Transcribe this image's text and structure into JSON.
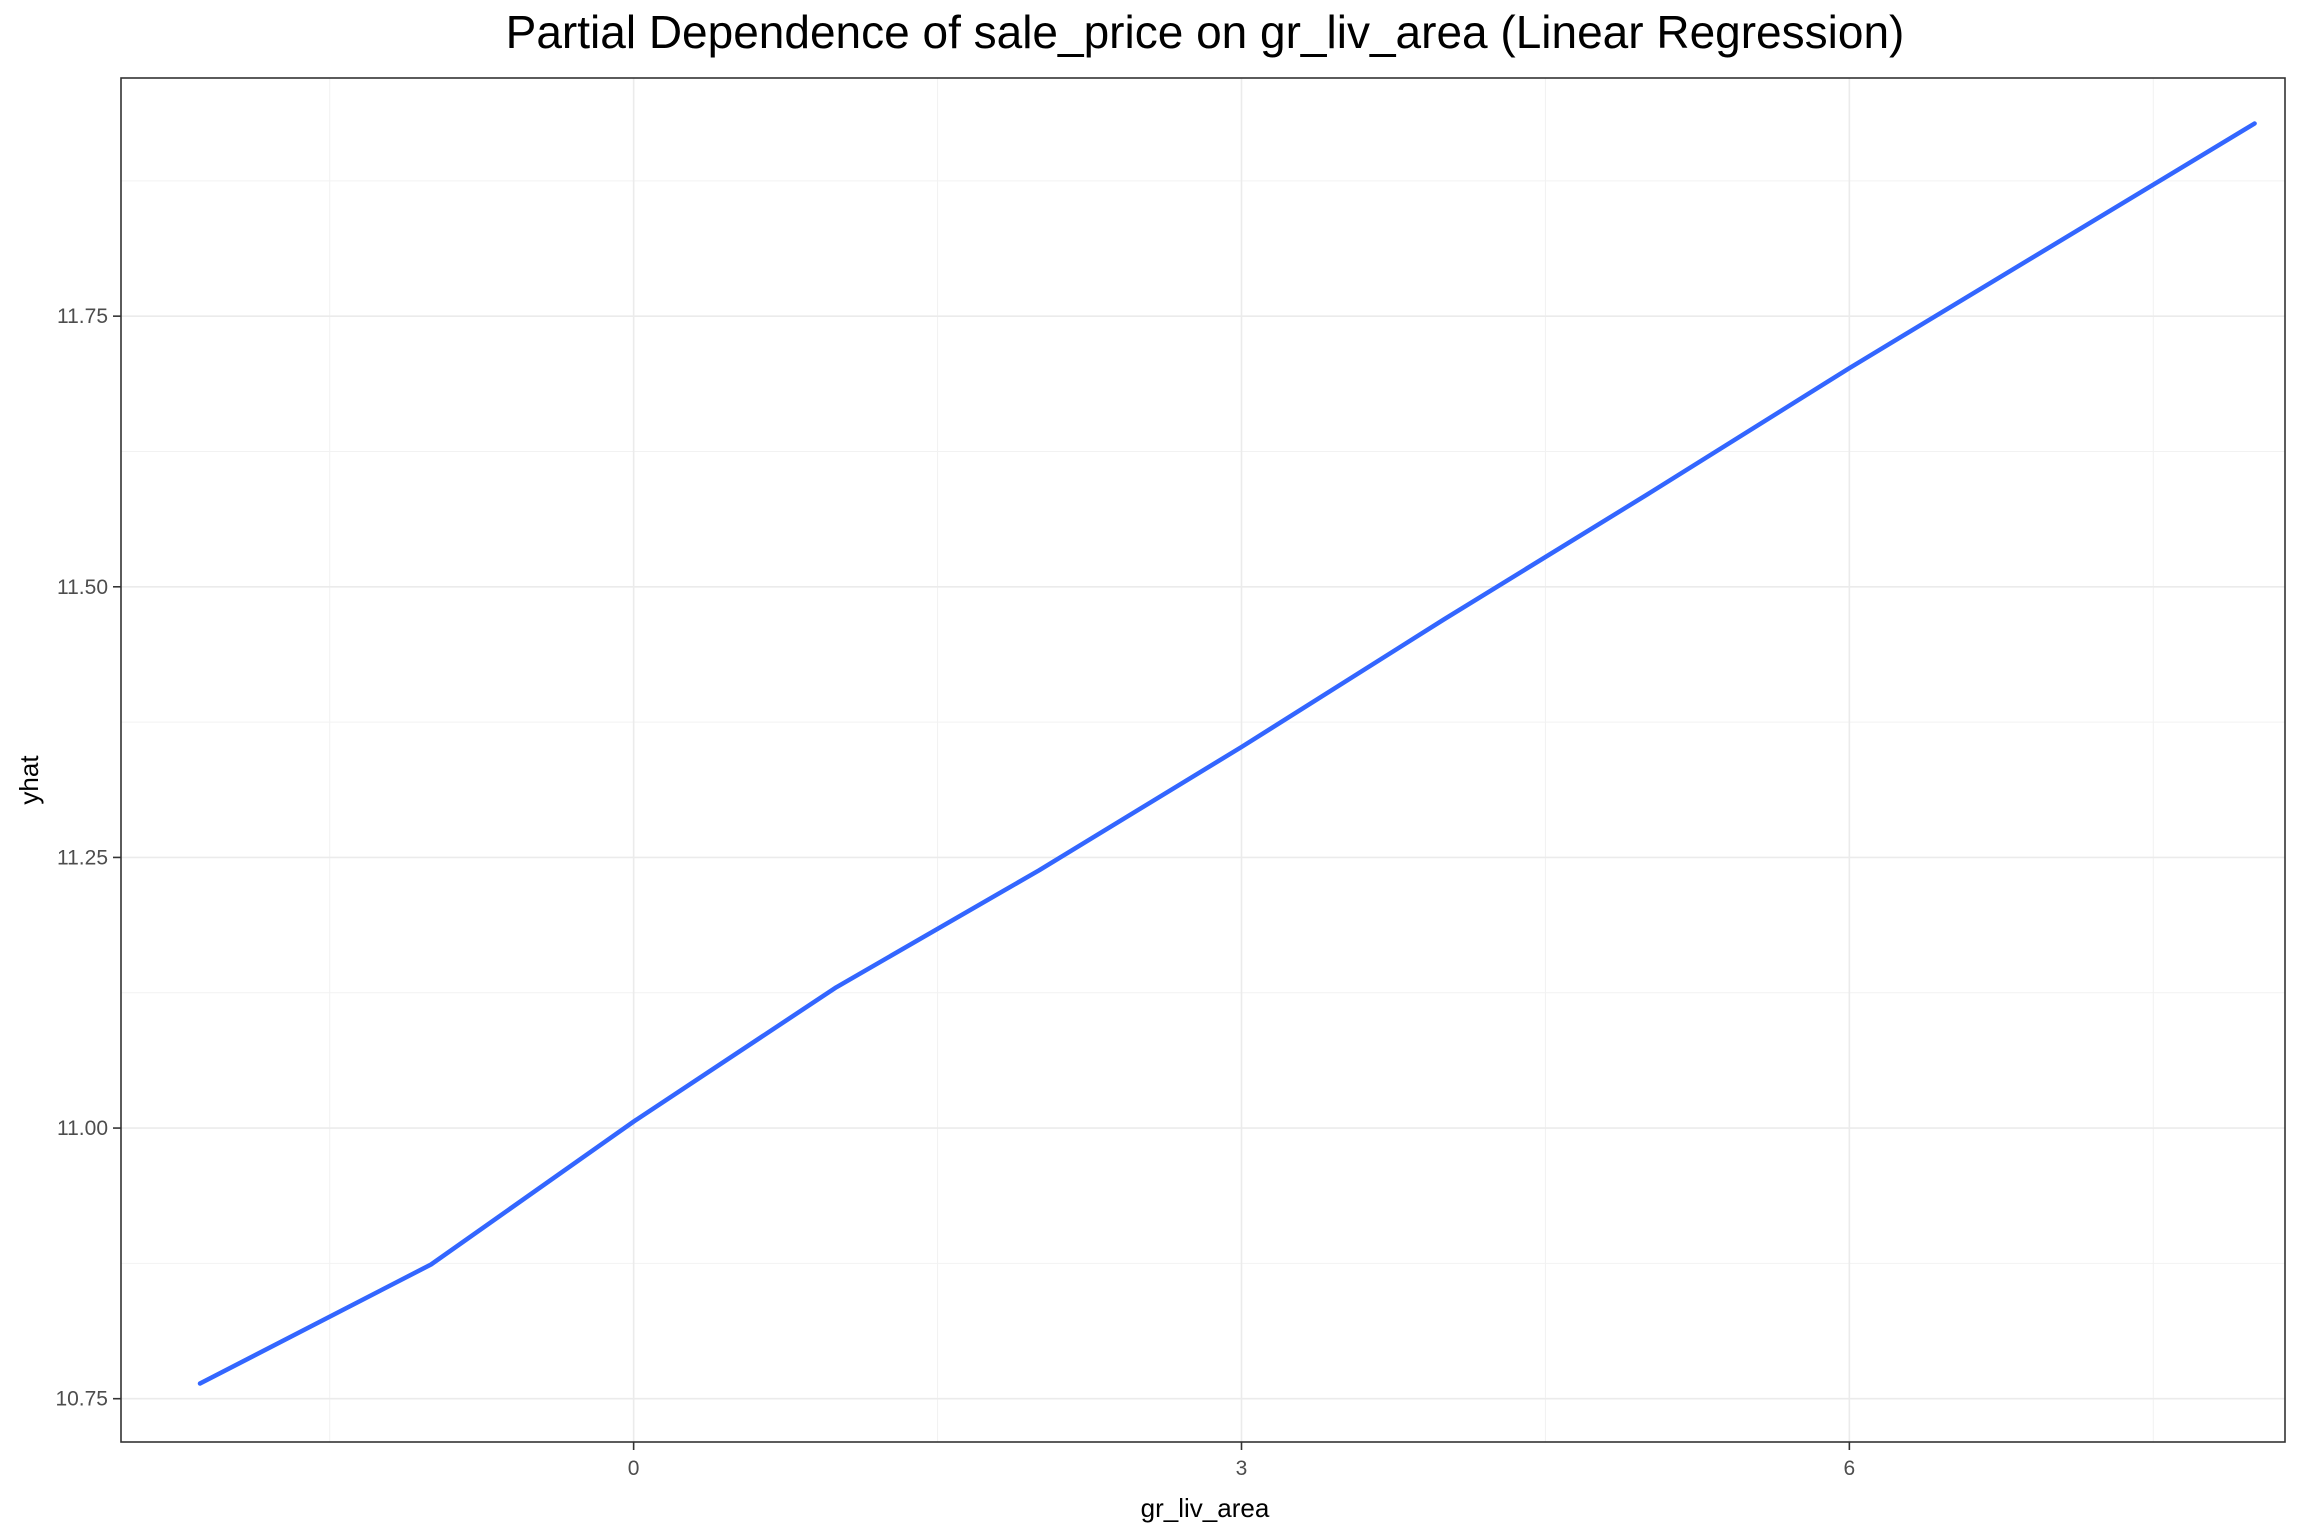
{
  "chart_data": {
    "type": "line",
    "title": "Partial Dependence of sale_price on gr_liv_area (Linear Regression)",
    "xlabel": "gr_liv_area",
    "ylabel": "yhat",
    "xlim": [
      -2.53,
      8.15
    ],
    "ylim": [
      10.71,
      11.97
    ],
    "x_ticks": [
      0,
      3,
      6
    ],
    "x_tick_labels": [
      "0",
      "3",
      "6"
    ],
    "x_minor_ticks": [
      -1.5,
      1.5,
      4.5,
      7.5
    ],
    "y_ticks": [
      10.75,
      11.0,
      11.25,
      11.5,
      11.75
    ],
    "y_tick_labels": [
      "10.75",
      "11.00",
      "11.25",
      "11.50",
      "11.75"
    ],
    "y_minor_ticks": [
      10.875,
      11.125,
      11.375,
      11.625,
      11.875
    ],
    "grid": true,
    "series": [
      {
        "color": "#3366FF",
        "x": [
          -2.14,
          -1.0,
          0.0,
          1.0,
          2.0,
          3.0,
          4.0,
          5.0,
          6.0,
          7.0,
          8.0
        ],
        "y": [
          10.764,
          10.874,
          11.006,
          11.13,
          11.238,
          11.352,
          11.47,
          11.585,
          11.702,
          11.815,
          11.928
        ]
      }
    ]
  }
}
